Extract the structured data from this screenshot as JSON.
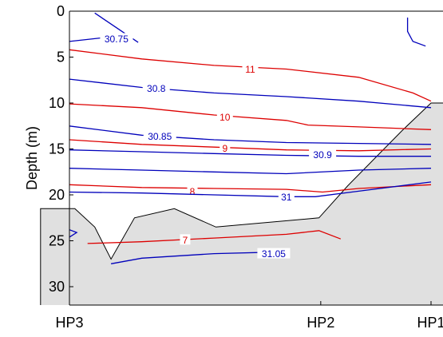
{
  "chart_data": {
    "type": "contour",
    "title": "",
    "xlabel": "",
    "ylabel": "Depth (m)",
    "ylim": [
      32,
      0
    ],
    "yticks": [
      0,
      5,
      10,
      15,
      20,
      25,
      30
    ],
    "ytick_labels": [
      "0",
      "5",
      "10",
      "15",
      "20",
      "25",
      "30"
    ],
    "xlim": [
      0,
      1
    ],
    "stations": [
      {
        "label": "HP3",
        "x": 0.0
      },
      {
        "label": "HP2",
        "x": 0.695
      },
      {
        "label": "HP1",
        "x": 1.0
      }
    ],
    "colors": {
      "temperature": "#dd0000",
      "salinity": "#0000bb",
      "seabed": "#e0e0e0",
      "axis": "#000000"
    },
    "seabed": [
      [
        -0.08,
        21.5
      ],
      [
        0.015,
        21.5
      ],
      [
        0.07,
        23.5
      ],
      [
        0.115,
        27.0
      ],
      [
        0.18,
        22.5
      ],
      [
        0.29,
        21.5
      ],
      [
        0.405,
        23.5
      ],
      [
        0.69,
        22.5
      ],
      [
        0.77,
        19.0
      ],
      [
        0.92,
        13.0
      ],
      [
        1.0,
        10.0
      ]
    ],
    "series": [
      {
        "name": "",
        "variable": "salinity",
        "label": "30.75",
        "label_at": [
          0.13,
          3.0
        ],
        "points": [
          [
            0.07,
            0.2
          ],
          [
            0.13,
            1.8
          ],
          [
            0.19,
            3.4
          ]
        ]
      },
      {
        "name": "",
        "variable": "salinity",
        "label": "30.75",
        "label_at": [
          0.13,
          3.0
        ],
        "points": [
          [
            0.0,
            3.3
          ],
          [
            0.09,
            2.9
          ],
          [
            0.15,
            3.1
          ]
        ]
      },
      {
        "name": "",
        "variable": "salinity",
        "label": "",
        "label_at": null,
        "points": [
          [
            0.935,
            0.7
          ],
          [
            0.935,
            2.2
          ],
          [
            0.95,
            3.3
          ],
          [
            0.985,
            3.8
          ]
        ]
      },
      {
        "name": "",
        "variable": "temperature",
        "label": "11",
        "label_at": [
          0.5,
          6.3
        ],
        "points": [
          [
            0.0,
            4.2
          ],
          [
            0.2,
            5.2
          ],
          [
            0.4,
            5.9
          ],
          [
            0.6,
            6.3
          ],
          [
            0.8,
            7.2
          ],
          [
            0.95,
            8.9
          ],
          [
            1.0,
            9.8
          ]
        ]
      },
      {
        "name": "",
        "variable": "salinity",
        "label": "30.8",
        "label_at": [
          0.24,
          8.4
        ],
        "points": [
          [
            0.0,
            7.4
          ],
          [
            0.2,
            8.3
          ],
          [
            0.4,
            8.9
          ],
          [
            0.6,
            9.3
          ],
          [
            0.8,
            9.8
          ],
          [
            1.0,
            10.5
          ]
        ]
      },
      {
        "name": "",
        "variable": "temperature",
        "label": "10",
        "label_at": [
          0.43,
          11.5
        ],
        "points": [
          [
            0.0,
            10.1
          ],
          [
            0.2,
            10.5
          ],
          [
            0.4,
            11.3
          ],
          [
            0.6,
            11.9
          ],
          [
            0.66,
            12.4
          ],
          [
            0.8,
            12.6
          ],
          [
            1.0,
            12.9
          ]
        ]
      },
      {
        "name": "",
        "variable": "salinity",
        "label": "30.85",
        "label_at": [
          0.25,
          13.6
        ],
        "points": [
          [
            0.0,
            12.5
          ],
          [
            0.2,
            13.5
          ],
          [
            0.4,
            14.0
          ],
          [
            0.6,
            14.3
          ],
          [
            0.8,
            14.4
          ],
          [
            1.0,
            14.5
          ]
        ]
      },
      {
        "name": "",
        "variable": "temperature",
        "label": "9",
        "label_at": [
          0.43,
          14.9
        ],
        "points": [
          [
            0.0,
            14.0
          ],
          [
            0.2,
            14.5
          ],
          [
            0.4,
            14.8
          ],
          [
            0.6,
            15.1
          ],
          [
            0.8,
            15.2
          ],
          [
            1.0,
            15.0
          ]
        ]
      },
      {
        "name": "",
        "variable": "salinity",
        "label": "30.9",
        "label_at": [
          0.7,
          15.6
        ],
        "points": [
          [
            0.0,
            15.1
          ],
          [
            0.2,
            15.3
          ],
          [
            0.4,
            15.5
          ],
          [
            0.6,
            15.7
          ],
          [
            0.8,
            15.8
          ],
          [
            1.0,
            15.8
          ]
        ]
      },
      {
        "name": "",
        "variable": "salinity",
        "label": "",
        "label_at": null,
        "points": [
          [
            0.0,
            17.1
          ],
          [
            0.2,
            17.3
          ],
          [
            0.4,
            17.5
          ],
          [
            0.6,
            17.7
          ],
          [
            0.8,
            17.3
          ],
          [
            1.0,
            17.1
          ]
        ]
      },
      {
        "name": "",
        "variable": "temperature",
        "label": "8",
        "label_at": [
          0.34,
          19.6
        ],
        "points": [
          [
            0.0,
            18.9
          ],
          [
            0.2,
            19.2
          ],
          [
            0.4,
            19.3
          ],
          [
            0.6,
            19.4
          ],
          [
            0.7,
            19.7
          ],
          [
            0.8,
            19.3
          ],
          [
            1.0,
            18.9
          ]
        ]
      },
      {
        "name": "",
        "variable": "salinity",
        "label": "31",
        "label_at": [
          0.6,
          20.2
        ],
        "points": [
          [
            0.0,
            19.7
          ],
          [
            0.2,
            19.8
          ],
          [
            0.4,
            20.0
          ],
          [
            0.6,
            20.2
          ],
          [
            0.68,
            20.2
          ],
          [
            0.8,
            19.6
          ],
          [
            1.0,
            18.6
          ]
        ]
      },
      {
        "name": "",
        "variable": "salinity",
        "label": "",
        "label_at": null,
        "points": [
          [
            0.0,
            23.8
          ],
          [
            0.02,
            24.1
          ],
          [
            0.0,
            24.6
          ]
        ]
      },
      {
        "name": "",
        "variable": "temperature",
        "label": "7",
        "label_at": [
          0.32,
          24.9
        ],
        "points": [
          [
            0.05,
            25.3
          ],
          [
            0.2,
            25.1
          ],
          [
            0.4,
            24.7
          ],
          [
            0.6,
            24.3
          ],
          [
            0.69,
            23.9
          ],
          [
            0.75,
            24.8
          ]
        ]
      },
      {
        "name": "",
        "variable": "salinity",
        "label": "31.05",
        "label_at": [
          0.565,
          26.4
        ],
        "points": [
          [
            0.115,
            27.5
          ],
          [
            0.2,
            26.9
          ],
          [
            0.4,
            26.4
          ],
          [
            0.6,
            26.2
          ]
        ]
      }
    ]
  }
}
